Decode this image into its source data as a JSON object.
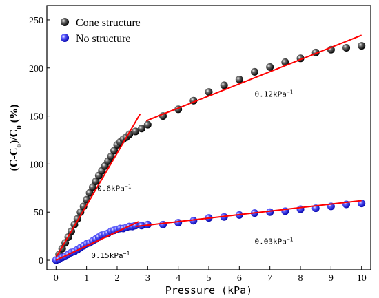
{
  "chart_data": {
    "type": "scatter",
    "xlabel": "Pressure (kPa)",
    "ylabel": {
      "open": "(C-C",
      "sub1": "0",
      "mid": ")/C",
      "sub2": "0",
      "close": " (%)"
    },
    "xlim": [
      -0.3,
      10.3
    ],
    "ylim": [
      -10,
      265
    ],
    "xticks": [
      0,
      1,
      2,
      3,
      4,
      5,
      6,
      7,
      8,
      9,
      10
    ],
    "yticks": [
      0,
      50,
      100,
      150,
      200,
      250
    ],
    "grid": false,
    "legend_position": "top-left",
    "colors": {
      "fit_line": "#ff0000",
      "cone_marker": "#1a1a1a",
      "nostruct_marker": "#2a2aff"
    },
    "series": [
      {
        "name": "Cone structure",
        "marker": "black-sphere",
        "x": [
          0,
          0.1,
          0.2,
          0.3,
          0.4,
          0.5,
          0.6,
          0.7,
          0.8,
          0.9,
          1.0,
          1.1,
          1.2,
          1.3,
          1.4,
          1.5,
          1.6,
          1.7,
          1.8,
          1.9,
          2.0,
          2.1,
          2.2,
          2.3,
          2.4,
          2.6,
          2.8,
          3.0,
          3.5,
          4.0,
          4.5,
          5.0,
          5.5,
          6.0,
          6.5,
          7.0,
          7.5,
          8.0,
          8.5,
          9.0,
          9.5,
          10.0
        ],
        "y": [
          0,
          6,
          12,
          18,
          24,
          30,
          37,
          43,
          50,
          56,
          63,
          70,
          76,
          82,
          88,
          93,
          98,
          103,
          108,
          114,
          120,
          123,
          126,
          128,
          131,
          134,
          137,
          141,
          150,
          157,
          166,
          175,
          182,
          188,
          196,
          201,
          206,
          210,
          216,
          219,
          221,
          223
        ]
      },
      {
        "name": "No structure",
        "marker": "blue-sphere",
        "x": [
          0,
          0.1,
          0.2,
          0.3,
          0.4,
          0.5,
          0.6,
          0.7,
          0.8,
          0.9,
          1.0,
          1.1,
          1.2,
          1.3,
          1.4,
          1.5,
          1.6,
          1.7,
          1.8,
          1.9,
          2.0,
          2.1,
          2.2,
          2.3,
          2.4,
          2.5,
          2.6,
          2.8,
          3.0,
          3.5,
          4.0,
          4.5,
          5.0,
          5.5,
          6.0,
          6.5,
          7.0,
          7.5,
          8.0,
          8.5,
          9.0,
          9.5,
          10.0
        ],
        "y": [
          0,
          1,
          3,
          4,
          6,
          8,
          9,
          11,
          13,
          15,
          17,
          18,
          20,
          22,
          24,
          26,
          27,
          28,
          30,
          31,
          32,
          33,
          33,
          34,
          35,
          35,
          36,
          36,
          37,
          37,
          39,
          41,
          44,
          45,
          47,
          49,
          50,
          51,
          53,
          54,
          56,
          58,
          59
        ]
      }
    ],
    "fit_lines": [
      {
        "x": [
          0.0,
          2.75
        ],
        "y": [
          3,
          152
        ]
      },
      {
        "x": [
          2.95,
          10.0
        ],
        "y": [
          145,
          234
        ]
      },
      {
        "x": [
          0.0,
          2.7
        ],
        "y": [
          0,
          40
        ]
      },
      {
        "x": [
          2.6,
          10.0
        ],
        "y": [
          35,
          62
        ]
      }
    ],
    "annotations": [
      {
        "base": "0.6kPa",
        "sup": "−1",
        "x": 1.35,
        "y": 72
      },
      {
        "base": "0.12kPa",
        "sup": "−1",
        "x": 6.5,
        "y": 170
      },
      {
        "base": "0.15kPa",
        "sup": "−1",
        "x": 1.15,
        "y": 2
      },
      {
        "base": "0.03kPa",
        "sup": "−1",
        "x": 6.5,
        "y": 17
      }
    ]
  }
}
